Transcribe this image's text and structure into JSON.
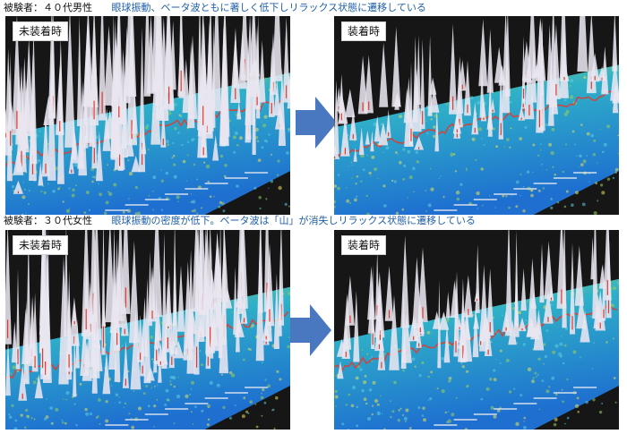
{
  "rows": [
    {
      "subject": "被験者：４０代男性",
      "finding": "眼球振動、ベータ波ともに著しく低下しリラックス状態に遷移している",
      "before_label": "未装着時",
      "after_label": "装着時"
    },
    {
      "subject": "被験者：３０代女性",
      "finding": "眼球振動の密度が低下。ベータ波は「山」が消失しリラックス状態に遷移している",
      "before_label": "未装着時",
      "after_label": "装着時"
    }
  ],
  "colors": {
    "arrow": "#4a78c0",
    "finding_text": "#1f5fa8",
    "peaks": "#e9e6f0",
    "base_high": "#2fb0c8",
    "base_low": "#1e6fd0",
    "ridge": "#e23a2a",
    "mid": "#9bd25a",
    "warm": "#e8e05a"
  },
  "icons": {
    "arrow": "right-arrow-icon"
  }
}
